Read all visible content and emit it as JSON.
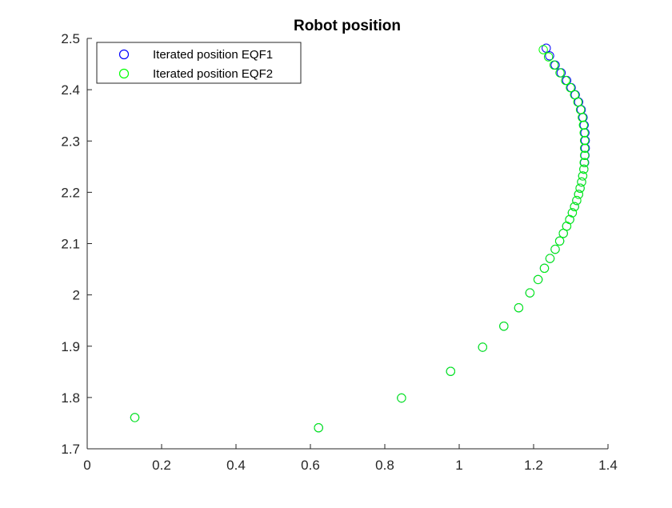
{
  "chart_data": {
    "type": "scatter",
    "title": "Robot position",
    "xlabel": "",
    "ylabel": "",
    "xlim": [
      0,
      1.4
    ],
    "ylim": [
      1.7,
      2.5
    ],
    "xticks": [
      0,
      0.2,
      0.4,
      0.6,
      0.8,
      1,
      1.2,
      1.4
    ],
    "xtick_labels": [
      "0",
      "0.2",
      "0.4",
      "0.6",
      "0.8",
      "1",
      "1.2",
      "1.4"
    ],
    "yticks": [
      1.7,
      1.8,
      1.9,
      2.0,
      2.1,
      2.2,
      2.3,
      2.4,
      2.5
    ],
    "ytick_labels": [
      "1.7",
      "1.8",
      "1.9",
      "2",
      "2.1",
      "2.2",
      "2.3",
      "2.4",
      "2.5"
    ],
    "grid": false,
    "legend_position": "top-left",
    "series": [
      {
        "name": "Iterated position EQF1",
        "color": "#0000ff",
        "marker": "circle",
        "x": [
          0.128,
          0.622,
          0.845,
          0.977,
          1.063,
          1.12,
          1.16,
          1.19,
          1.212,
          1.229,
          1.244,
          1.258,
          1.27,
          1.28,
          1.289,
          1.297,
          1.304,
          1.31,
          1.316,
          1.321,
          1.325,
          1.329,
          1.332,
          1.335,
          1.337,
          1.338,
          1.339,
          1.339,
          1.338,
          1.336,
          1.333,
          1.328,
          1.321,
          1.312,
          1.301,
          1.289,
          1.274,
          1.258,
          1.243,
          1.234
        ],
        "y": [
          1.761,
          1.741,
          1.799,
          1.851,
          1.898,
          1.939,
          1.975,
          2.004,
          2.03,
          2.052,
          2.071,
          2.089,
          2.105,
          2.12,
          2.134,
          2.147,
          2.16,
          2.172,
          2.184,
          2.196,
          2.208,
          2.22,
          2.232,
          2.245,
          2.258,
          2.272,
          2.286,
          2.301,
          2.316,
          2.331,
          2.346,
          2.361,
          2.376,
          2.39,
          2.404,
          2.418,
          2.433,
          2.448,
          2.466,
          2.481
        ]
      },
      {
        "name": "Iterated position EQF2",
        "color": "#00ff00",
        "marker": "circle",
        "x": [
          0.128,
          0.622,
          0.845,
          0.977,
          1.063,
          1.12,
          1.16,
          1.19,
          1.212,
          1.229,
          1.244,
          1.258,
          1.27,
          1.28,
          1.289,
          1.297,
          1.304,
          1.31,
          1.316,
          1.321,
          1.325,
          1.329,
          1.332,
          1.335,
          1.336,
          1.337,
          1.337,
          1.337,
          1.336,
          1.334,
          1.331,
          1.326,
          1.319,
          1.31,
          1.299,
          1.286,
          1.271,
          1.255,
          1.24,
          1.226
        ],
        "y": [
          1.761,
          1.741,
          1.799,
          1.851,
          1.898,
          1.939,
          1.975,
          2.004,
          2.03,
          2.052,
          2.071,
          2.089,
          2.105,
          2.12,
          2.134,
          2.147,
          2.16,
          2.172,
          2.184,
          2.196,
          2.208,
          2.22,
          2.232,
          2.245,
          2.258,
          2.272,
          2.286,
          2.301,
          2.316,
          2.331,
          2.346,
          2.361,
          2.376,
          2.39,
          2.404,
          2.418,
          2.433,
          2.448,
          2.464,
          2.478
        ]
      }
    ]
  }
}
